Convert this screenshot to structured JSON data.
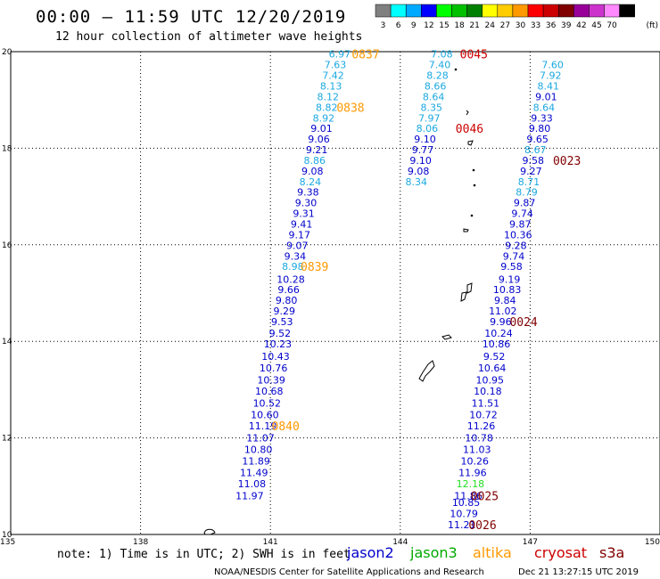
{
  "header": {
    "title": "00:00 — 11:59 UTC 12/20/2019",
    "subtitle": "12 hour collection of altimeter wave heights"
  },
  "legend": {
    "unit": "(ft)",
    "bins": [
      {
        "label": "3",
        "color": "#808080"
      },
      {
        "label": "6",
        "color": "#00ffff"
      },
      {
        "label": "9",
        "color": "#00aaff"
      },
      {
        "label": "12",
        "color": "#0000ff"
      },
      {
        "label": "15",
        "color": "#00ff00"
      },
      {
        "label": "18",
        "color": "#00c000"
      },
      {
        "label": "21",
        "color": "#008000"
      },
      {
        "label": "24",
        "color": "#ffff00"
      },
      {
        "label": "27",
        "color": "#ffcc00"
      },
      {
        "label": "30",
        "color": "#ff9900"
      },
      {
        "label": "33",
        "color": "#ff0000"
      },
      {
        "label": "36",
        "color": "#cc0000"
      },
      {
        "label": "39",
        "color": "#800000"
      },
      {
        "label": "42",
        "color": "#990099"
      },
      {
        "label": "45",
        "color": "#cc33cc"
      },
      {
        "label": "70",
        "color": "#ff88ff"
      },
      {
        "label": "",
        "color": "#000000"
      }
    ]
  },
  "footer": {
    "note": "note: 1) Time is in UTC; 2) SWH is in feet",
    "satellites": [
      {
        "name": "jason2",
        "color": "#0000cc"
      },
      {
        "name": "jason3",
        "color": "#00aa00"
      },
      {
        "name": "altika",
        "color": "#ff9900"
      },
      {
        "name": "cryosat",
        "color": "#cc0000"
      },
      {
        "name": "s3a",
        "color": "#800000"
      }
    ],
    "credit": "NOAA/NESDIS Center for Satellite Applications and Research",
    "timestamp": "Dec 21 13:27:15 UTC 2019"
  },
  "chart_data": {
    "type": "scatter",
    "title": "00:00 — 11:59 UTC 12/20/2019",
    "subtitle": "12 hour collection of altimeter wave heights",
    "xlim": [
      135,
      150
    ],
    "ylim": [
      10,
      20
    ],
    "x_ticks": [
      "135",
      "138",
      "141",
      "144",
      "147",
      "150"
    ],
    "y_ticks": [
      "10",
      "12",
      "14",
      "16",
      "18",
      "20"
    ],
    "grid": "dotted",
    "value_colors": {
      "cyan": "#1ba8e0",
      "blue": "#0000cc",
      "green": "#22dd22"
    },
    "tracks": [
      {
        "name": "altika",
        "points": [
          {
            "lon": 142.6,
            "lat": 19.95,
            "v": "6.97",
            "c": "cyan"
          },
          {
            "lon": 142.5,
            "lat": 19.73,
            "v": "7.63",
            "c": "cyan"
          },
          {
            "lon": 142.45,
            "lat": 19.51,
            "v": "7.42",
            "c": "cyan"
          },
          {
            "lon": 142.4,
            "lat": 19.29,
            "v": "8.13",
            "c": "cyan"
          },
          {
            "lon": 142.33,
            "lat": 19.07,
            "v": "8.12",
            "c": "cyan"
          },
          {
            "lon": 142.3,
            "lat": 18.85,
            "v": "8.82",
            "c": "cyan"
          },
          {
            "lon": 142.23,
            "lat": 18.63,
            "v": "8.92",
            "c": "cyan"
          },
          {
            "lon": 142.18,
            "lat": 18.41,
            "v": "9.01",
            "c": "blue"
          },
          {
            "lon": 142.12,
            "lat": 18.19,
            "v": "9.06",
            "c": "blue"
          },
          {
            "lon": 142.07,
            "lat": 17.97,
            "v": "9.21",
            "c": "blue"
          },
          {
            "lon": 142.02,
            "lat": 17.75,
            "v": "8.86",
            "c": "cyan"
          },
          {
            "lon": 141.97,
            "lat": 17.53,
            "v": "9.08",
            "c": "blue"
          },
          {
            "lon": 141.92,
            "lat": 17.31,
            "v": "8.24",
            "c": "cyan"
          },
          {
            "lon": 141.87,
            "lat": 17.09,
            "v": "9.38",
            "c": "blue"
          },
          {
            "lon": 141.82,
            "lat": 16.87,
            "v": "9.30",
            "c": "blue"
          },
          {
            "lon": 141.77,
            "lat": 16.65,
            "v": "9.31",
            "c": "blue"
          },
          {
            "lon": 141.72,
            "lat": 16.43,
            "v": "9.41",
            "c": "blue"
          },
          {
            "lon": 141.67,
            "lat": 16.21,
            "v": "9.17",
            "c": "blue"
          },
          {
            "lon": 141.62,
            "lat": 15.99,
            "v": "9.07",
            "c": "blue"
          },
          {
            "lon": 141.57,
            "lat": 15.77,
            "v": "9.34",
            "c": "blue"
          },
          {
            "lon": 141.52,
            "lat": 15.55,
            "v": "8.98",
            "c": "cyan"
          },
          {
            "lon": 141.47,
            "lat": 15.29,
            "v": "10.28",
            "c": "blue"
          },
          {
            "lon": 141.42,
            "lat": 15.07,
            "v": "9.66",
            "c": "blue"
          },
          {
            "lon": 141.37,
            "lat": 14.85,
            "v": "9.80",
            "c": "blue"
          },
          {
            "lon": 141.32,
            "lat": 14.63,
            "v": "9.29",
            "c": "blue"
          },
          {
            "lon": 141.27,
            "lat": 14.41,
            "v": "9.53",
            "c": "blue"
          },
          {
            "lon": 141.22,
            "lat": 14.17,
            "v": "9.52",
            "c": "blue"
          },
          {
            "lon": 141.17,
            "lat": 13.95,
            "v": "10.23",
            "c": "blue"
          },
          {
            "lon": 141.12,
            "lat": 13.69,
            "v": "10.43",
            "c": "blue"
          },
          {
            "lon": 141.07,
            "lat": 13.45,
            "v": "10.76",
            "c": "blue"
          },
          {
            "lon": 141.02,
            "lat": 13.2,
            "v": "10.39",
            "c": "blue"
          },
          {
            "lon": 140.97,
            "lat": 12.97,
            "v": "10.68",
            "c": "blue"
          },
          {
            "lon": 140.92,
            "lat": 12.72,
            "v": "10.52",
            "c": "blue"
          },
          {
            "lon": 140.87,
            "lat": 12.48,
            "v": "10.60",
            "c": "blue"
          },
          {
            "lon": 140.82,
            "lat": 12.25,
            "v": "11.19",
            "c": "blue"
          },
          {
            "lon": 140.77,
            "lat": 12.0,
            "v": "11.07",
            "c": "blue"
          },
          {
            "lon": 140.72,
            "lat": 11.76,
            "v": "10.80",
            "c": "blue"
          },
          {
            "lon": 140.67,
            "lat": 11.52,
            "v": "11.89",
            "c": "blue"
          },
          {
            "lon": 140.62,
            "lat": 11.28,
            "v": "11.49",
            "c": "blue"
          },
          {
            "lon": 140.57,
            "lat": 11.05,
            "v": "11.08",
            "c": "blue"
          },
          {
            "lon": 140.52,
            "lat": 10.8,
            "v": "11.97",
            "c": "blue"
          }
        ],
        "pass_labels": [
          {
            "lon": 143.2,
            "lat": 19.95,
            "v": "0837"
          },
          {
            "lon": 142.85,
            "lat": 18.85,
            "v": "0838"
          },
          {
            "lon": 142.02,
            "lat": 15.55,
            "v": "0839"
          },
          {
            "lon": 141.35,
            "lat": 12.25,
            "v": "0840"
          }
        ]
      },
      {
        "name": "cryosat",
        "points": [
          {
            "lon": 144.96,
            "lat": 19.95,
            "v": "7.08",
            "c": "cyan"
          },
          {
            "lon": 144.91,
            "lat": 19.73,
            "v": "7.40",
            "c": "cyan"
          },
          {
            "lon": 144.86,
            "lat": 19.51,
            "v": "8.28",
            "c": "cyan"
          },
          {
            "lon": 144.81,
            "lat": 19.29,
            "v": "8.66",
            "c": "cyan"
          },
          {
            "lon": 144.77,
            "lat": 19.07,
            "v": "8.64",
            "c": "cyan"
          },
          {
            "lon": 144.72,
            "lat": 18.85,
            "v": "8.35",
            "c": "cyan"
          },
          {
            "lon": 144.67,
            "lat": 18.63,
            "v": "7.97",
            "c": "cyan"
          },
          {
            "lon": 144.62,
            "lat": 18.41,
            "v": "8.06",
            "c": "cyan"
          },
          {
            "lon": 144.57,
            "lat": 18.19,
            "v": "9.10",
            "c": "blue"
          },
          {
            "lon": 144.52,
            "lat": 17.97,
            "v": "9.77",
            "c": "blue"
          },
          {
            "lon": 144.47,
            "lat": 17.75,
            "v": "9.10",
            "c": "blue"
          },
          {
            "lon": 144.42,
            "lat": 17.53,
            "v": "9.08",
            "c": "blue"
          },
          {
            "lon": 144.37,
            "lat": 17.31,
            "v": "8.34",
            "c": "cyan"
          }
        ],
        "pass_labels": [
          {
            "lon": 145.7,
            "lat": 19.95,
            "v": "0045"
          },
          {
            "lon": 145.6,
            "lat": 18.41,
            "v": "0046"
          }
        ]
      },
      {
        "name": "s3a",
        "points": [
          {
            "lon": 147.52,
            "lat": 19.73,
            "v": "7.60",
            "c": "cyan"
          },
          {
            "lon": 147.47,
            "lat": 19.51,
            "v": "7.92",
            "c": "cyan"
          },
          {
            "lon": 147.42,
            "lat": 19.29,
            "v": "8.41",
            "c": "cyan"
          },
          {
            "lon": 147.37,
            "lat": 19.07,
            "v": "9.01",
            "c": "blue"
          },
          {
            "lon": 147.32,
            "lat": 18.85,
            "v": "8.64",
            "c": "cyan"
          },
          {
            "lon": 147.27,
            "lat": 18.63,
            "v": "9.33",
            "c": "blue"
          },
          {
            "lon": 147.22,
            "lat": 18.41,
            "v": "9.80",
            "c": "blue"
          },
          {
            "lon": 147.17,
            "lat": 18.19,
            "v": "9.65",
            "c": "blue"
          },
          {
            "lon": 147.12,
            "lat": 17.97,
            "v": "8.67",
            "c": "cyan"
          },
          {
            "lon": 147.07,
            "lat": 17.75,
            "v": "9.58",
            "c": "blue"
          },
          {
            "lon": 147.02,
            "lat": 17.53,
            "v": "9.27",
            "c": "blue"
          },
          {
            "lon": 146.97,
            "lat": 17.31,
            "v": "8.71",
            "c": "cyan"
          },
          {
            "lon": 146.92,
            "lat": 17.09,
            "v": "8.79",
            "c": "cyan"
          },
          {
            "lon": 146.87,
            "lat": 16.87,
            "v": "9.87",
            "c": "blue"
          },
          {
            "lon": 146.82,
            "lat": 16.65,
            "v": "9.74",
            "c": "blue"
          },
          {
            "lon": 146.77,
            "lat": 16.43,
            "v": "9.87",
            "c": "blue"
          },
          {
            "lon": 146.72,
            "lat": 16.21,
            "v": "10.36",
            "c": "blue"
          },
          {
            "lon": 146.67,
            "lat": 15.99,
            "v": "9.28",
            "c": "blue"
          },
          {
            "lon": 146.62,
            "lat": 15.77,
            "v": "9.74",
            "c": "blue"
          },
          {
            "lon": 146.57,
            "lat": 15.55,
            "v": "9.58",
            "c": "blue"
          },
          {
            "lon": 146.52,
            "lat": 15.29,
            "v": "9.19",
            "c": "blue"
          },
          {
            "lon": 146.47,
            "lat": 15.07,
            "v": "10.83",
            "c": "blue"
          },
          {
            "lon": 146.42,
            "lat": 14.85,
            "v": "9.84",
            "c": "blue"
          },
          {
            "lon": 146.37,
            "lat": 14.63,
            "v": "11.02",
            "c": "blue"
          },
          {
            "lon": 146.32,
            "lat": 14.41,
            "v": "9.96",
            "c": "blue"
          },
          {
            "lon": 146.27,
            "lat": 14.17,
            "v": "10.24",
            "c": "blue"
          },
          {
            "lon": 146.22,
            "lat": 13.95,
            "v": "10.86",
            "c": "blue"
          },
          {
            "lon": 146.17,
            "lat": 13.69,
            "v": "9.52",
            "c": "blue"
          },
          {
            "lon": 146.12,
            "lat": 13.45,
            "v": "10.64",
            "c": "blue"
          },
          {
            "lon": 146.07,
            "lat": 13.2,
            "v": "10.95",
            "c": "blue"
          },
          {
            "lon": 146.02,
            "lat": 12.97,
            "v": "10.18",
            "c": "blue"
          },
          {
            "lon": 145.97,
            "lat": 12.72,
            "v": "11.51",
            "c": "blue"
          },
          {
            "lon": 145.92,
            "lat": 12.48,
            "v": "10.72",
            "c": "blue"
          },
          {
            "lon": 145.87,
            "lat": 12.25,
            "v": "11.26",
            "c": "blue"
          },
          {
            "lon": 145.82,
            "lat": 12.0,
            "v": "10.78",
            "c": "blue"
          },
          {
            "lon": 145.77,
            "lat": 11.76,
            "v": "11.03",
            "c": "blue"
          },
          {
            "lon": 145.72,
            "lat": 11.52,
            "v": "10.26",
            "c": "blue"
          },
          {
            "lon": 145.67,
            "lat": 11.28,
            "v": "11.96",
            "c": "blue"
          },
          {
            "lon": 145.62,
            "lat": 11.05,
            "v": "12.18",
            "c": "green"
          },
          {
            "lon": 145.57,
            "lat": 10.8,
            "v": "11.86",
            "c": "blue"
          },
          {
            "lon": 145.52,
            "lat": 10.66,
            "v": "10.85",
            "c": "blue"
          },
          {
            "lon": 145.47,
            "lat": 10.43,
            "v": "10.79",
            "c": "blue"
          },
          {
            "lon": 145.42,
            "lat": 10.2,
            "v": "11.21",
            "c": "blue"
          }
        ],
        "pass_labels": [
          {
            "lon": 147.85,
            "lat": 17.75,
            "v": "0023"
          },
          {
            "lon": 146.85,
            "lat": 14.41,
            "v": "0024"
          },
          {
            "lon": 145.95,
            "lat": 10.8,
            "v": "0025"
          },
          {
            "lon": 145.9,
            "lat": 10.2,
            "v": "0026"
          }
        ]
      }
    ]
  }
}
